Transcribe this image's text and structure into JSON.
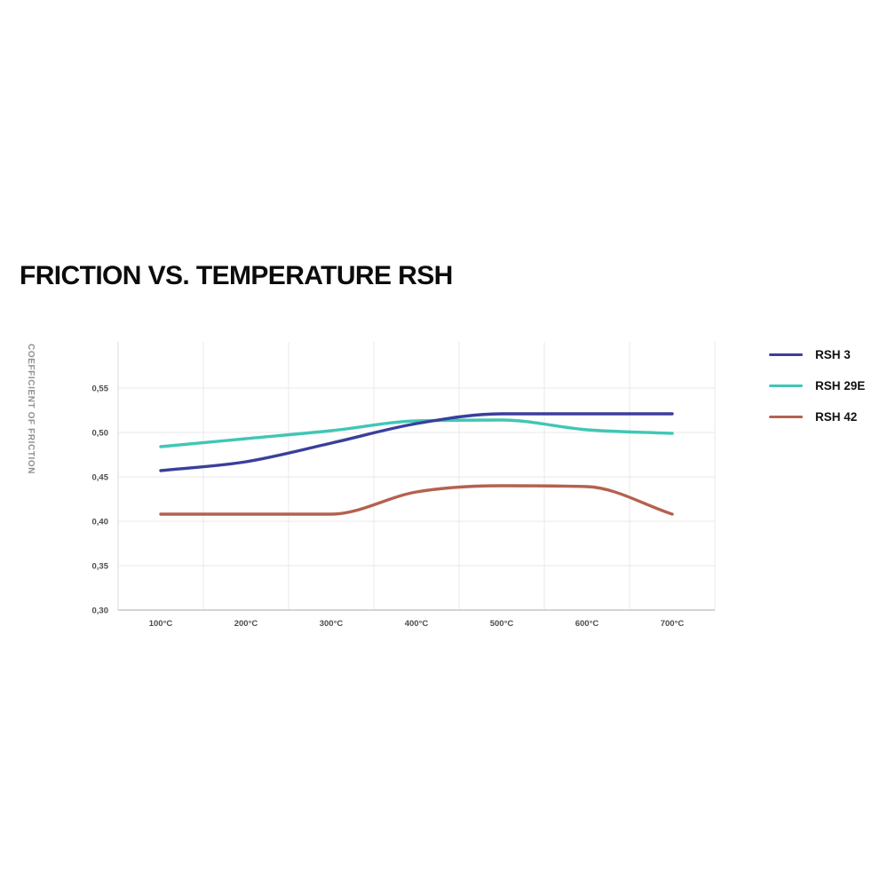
{
  "title": "FRICTION VS. TEMPERATURE RSH",
  "chart_data": {
    "type": "line",
    "title": "FRICTION VS. TEMPERATURE RSH",
    "xlabel": "",
    "ylabel": "COEFFICIENT OF FRICTION",
    "categories": [
      "100°C",
      "200°C",
      "300°C",
      "400°C",
      "500°C",
      "600°C",
      "700°C"
    ],
    "series": [
      {
        "name": "RSH 3",
        "color": "#3a3f9c",
        "values": [
          0.457,
          0.467,
          0.488,
          0.51,
          0.521,
          0.521,
          0.521
        ]
      },
      {
        "name": "RSH 29E",
        "color": "#41c6b5",
        "values": [
          0.484,
          0.493,
          0.502,
          0.513,
          0.514,
          0.503,
          0.499
        ]
      },
      {
        "name": "RSH 42",
        "color": "#b4614f",
        "values": [
          0.408,
          0.408,
          0.408,
          0.433,
          0.44,
          0.439,
          0.408
        ]
      }
    ],
    "ylim": [
      0.3,
      0.6
    ],
    "yticks": [
      {
        "value": 0.3,
        "label": "0,30"
      },
      {
        "value": 0.35,
        "label": "0,35"
      },
      {
        "value": 0.4,
        "label": "0,40"
      },
      {
        "value": 0.45,
        "label": "0,45"
      },
      {
        "value": 0.5,
        "label": "0,50"
      },
      {
        "value": 0.55,
        "label": "0,55"
      }
    ],
    "grid": true,
    "legend_position": "right",
    "line_smoothing": "monotone"
  },
  "colors": {
    "background": "#ffffff",
    "gridline": "#e8e8e8",
    "left_axis": "#dadada",
    "bottom_axis": "#c6c6c6",
    "tick_text": "#4d4d4d",
    "axis_title_text": "#919191",
    "title_text": "#0c0c0c"
  }
}
